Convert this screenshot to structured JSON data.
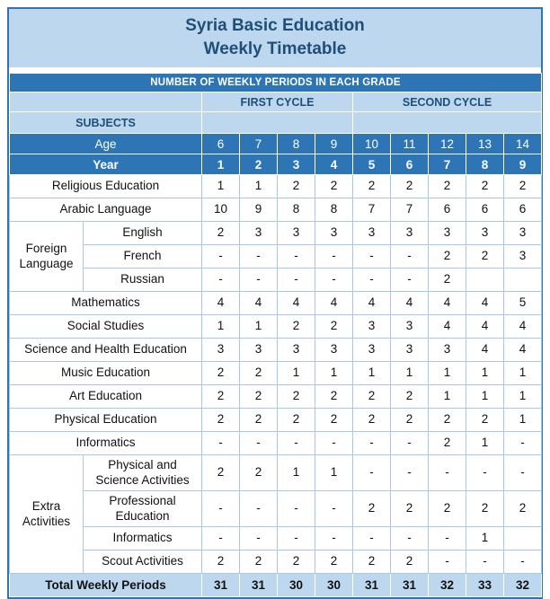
{
  "title": {
    "line1": "Syria Basic Education",
    "line2": "Weekly Timetable"
  },
  "banner": "NUMBER OF WEEKLY PERIODS IN EACH GRADE",
  "cycles": [
    {
      "label": "FIRST CYCLE",
      "span": 4
    },
    {
      "label": "SECOND CYCLE",
      "span": 5
    }
  ],
  "subjects_label": "SUBJECTS",
  "age_row": {
    "label": "Age",
    "values": [
      "6",
      "7",
      "8",
      "9",
      "10",
      "11",
      "12",
      "13",
      "14"
    ]
  },
  "year_row": {
    "label": "Year",
    "values": [
      "1",
      "2",
      "3",
      "4",
      "5",
      "6",
      "7",
      "8",
      "9"
    ]
  },
  "rows": [
    {
      "type": "standalone",
      "subject": "Religious Education",
      "values": [
        "1",
        "1",
        "2",
        "2",
        "2",
        "2",
        "2",
        "2",
        "2"
      ]
    },
    {
      "type": "standalone",
      "subject": "Arabic Language",
      "values": [
        "10",
        "9",
        "8",
        "8",
        "7",
        "7",
        "6",
        "6",
        "6"
      ]
    },
    {
      "type": "group-start",
      "group": "Foreign Language",
      "group_rows": 3,
      "subject": "English",
      "values": [
        "2",
        "3",
        "3",
        "3",
        "3",
        "3",
        "3",
        "3",
        "3"
      ]
    },
    {
      "type": "group-member",
      "subject": "French",
      "values": [
        "-",
        "-",
        "-",
        "-",
        "-",
        "-",
        "2",
        "2",
        "3"
      ]
    },
    {
      "type": "group-member",
      "subject": "Russian",
      "values": [
        "-",
        "-",
        "-",
        "-",
        "-",
        "-",
        "2",
        "",
        ""
      ]
    },
    {
      "type": "standalone",
      "subject": "Mathematics",
      "values": [
        "4",
        "4",
        "4",
        "4",
        "4",
        "4",
        "4",
        "4",
        "5"
      ]
    },
    {
      "type": "standalone",
      "subject": "Social Studies",
      "values": [
        "1",
        "1",
        "2",
        "2",
        "3",
        "3",
        "4",
        "4",
        "4"
      ]
    },
    {
      "type": "standalone",
      "subject": "Science and Health Education",
      "values": [
        "3",
        "3",
        "3",
        "3",
        "3",
        "3",
        "3",
        "4",
        "4"
      ]
    },
    {
      "type": "standalone",
      "subject": "Music Education",
      "values": [
        "2",
        "2",
        "1",
        "1",
        "1",
        "1",
        "1",
        "1",
        "1"
      ]
    },
    {
      "type": "standalone",
      "subject": "Art Education",
      "values": [
        "2",
        "2",
        "2",
        "2",
        "2",
        "2",
        "1",
        "1",
        "1"
      ]
    },
    {
      "type": "standalone",
      "subject": "Physical Education",
      "values": [
        "2",
        "2",
        "2",
        "2",
        "2",
        "2",
        "2",
        "2",
        "1"
      ]
    },
    {
      "type": "standalone",
      "subject": "Informatics",
      "values": [
        "-",
        "-",
        "-",
        "-",
        "-",
        "-",
        "2",
        "1",
        "-"
      ]
    },
    {
      "type": "group-start",
      "group": "Extra Activities",
      "group_rows": 4,
      "subject": "Physical and Science Activities",
      "tall": true,
      "values": [
        "2",
        "2",
        "1",
        "1",
        "-",
        "-",
        "-",
        "-",
        "-"
      ]
    },
    {
      "type": "group-member",
      "subject": "Professional Education",
      "tall": true,
      "values": [
        "-",
        "-",
        "-",
        "-",
        "2",
        "2",
        "2",
        "2",
        "2"
      ]
    },
    {
      "type": "group-member",
      "subject": "Informatics",
      "values": [
        "-",
        "-",
        "-",
        "-",
        "-",
        "-",
        "-",
        "1",
        ""
      ]
    },
    {
      "type": "group-member",
      "subject": "Scout Activities",
      "values": [
        "2",
        "2",
        "2",
        "2",
        "2",
        "2",
        "-",
        "-",
        "-"
      ]
    }
  ],
  "total_row": {
    "label": "Total Weekly Periods",
    "values": [
      "31",
      "31",
      "30",
      "30",
      "31",
      "31",
      "32",
      "33",
      "32"
    ]
  },
  "colors": {
    "header_blue": "#2E75B6",
    "light_blue": "#BDD7EE",
    "navy_text": "#1F4E79",
    "grid_line": "#A9C7E7",
    "white": "#FFFFFF"
  }
}
